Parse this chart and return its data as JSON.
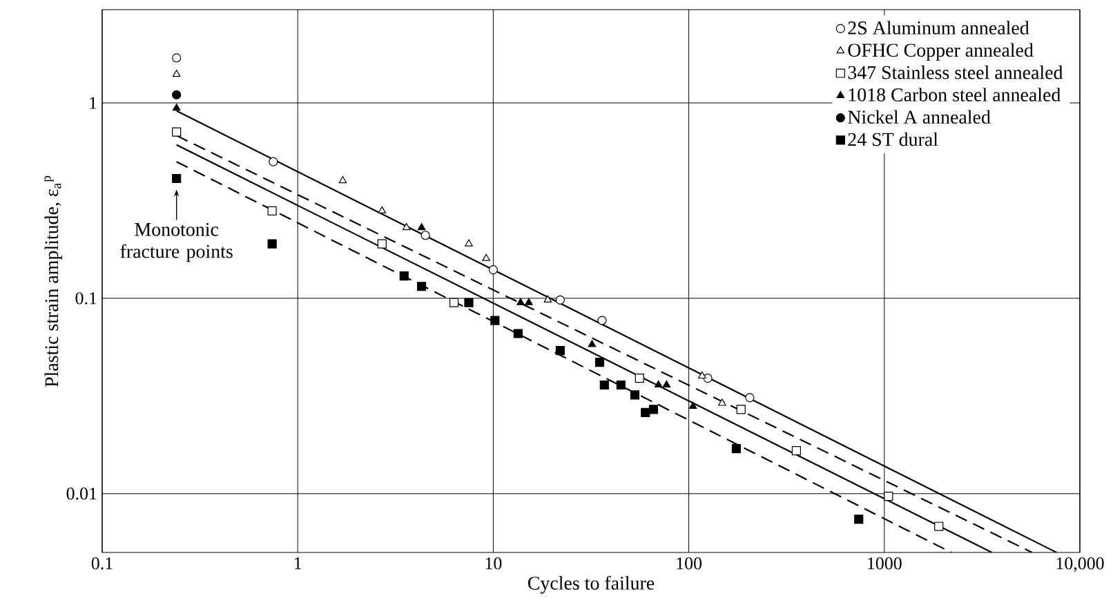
{
  "chart_data": {
    "type": "scatter",
    "xlabel": "Cycles to failure",
    "ylabel": "Plastic strain amplitude, ε$_{a}$$^{p}$",
    "log": "xy",
    "grid": true,
    "legend": "top right",
    "xlim": [
      0.1,
      10000
    ],
    "ylim": [
      0.005,
      3
    ],
    "xticks": [
      0.1,
      1,
      10,
      100,
      1000,
      {
        "value": 10000,
        "label": "10,000"
      }
    ],
    "yticks": [
      0.01,
      0.1,
      1
    ],
    "annotations": [
      {
        "text": "Monotonic fracture points",
        "x": 0.24,
        "y": 0.41
      }
    ],
    "series": [
      {
        "name": "2S Aluminum annealed",
        "marker": "circle",
        "color": "#ffffff",
        "x": [
          0.24,
          0.75,
          4.5,
          10,
          22,
          36,
          125,
          205
        ],
        "values": [
          1.7,
          0.5,
          0.21,
          0.14,
          0.098,
          0.077,
          0.039,
          0.031
        ]
      },
      {
        "name": "OFHC Copper annealed",
        "marker": "triangle",
        "color": "#ffffff",
        "x": [
          0.24,
          1.7,
          2.7,
          3.6,
          7.5,
          9.2,
          19,
          117,
          148
        ],
        "values": [
          1.4,
          0.4,
          0.28,
          0.23,
          0.19,
          0.16,
          0.098,
          0.04,
          0.029
        ]
      },
      {
        "name": "347 Stainless steel annealed",
        "marker": "square",
        "color": "#ffffff",
        "x": [
          0.24,
          0.74,
          2.7,
          6.3,
          56,
          185,
          355,
          1050,
          1900
        ],
        "values": [
          0.71,
          0.28,
          0.19,
          0.095,
          0.039,
          0.027,
          0.0166,
          0.0097,
          0.0068
        ]
      },
      {
        "name": "1018 Carbon steel annealed",
        "marker": "triangle",
        "color": "#000000",
        "x": [
          0.24,
          4.3,
          13.8,
          15.2,
          32,
          70,
          77,
          105
        ],
        "values": [
          0.94,
          0.23,
          0.095,
          0.095,
          0.058,
          0.036,
          0.036,
          0.028
        ]
      },
      {
        "name": "Nickel A annealed",
        "marker": "circle",
        "color": "#000000",
        "x": [
          0.24
        ],
        "values": [
          1.1
        ]
      },
      {
        "name": "24 ST dural",
        "marker": "square",
        "color": "#000000",
        "x": [
          0.24,
          0.74,
          3.5,
          4.3,
          7.5,
          10.2,
          13.4,
          22,
          35,
          37,
          45,
          53,
          60,
          66,
          175,
          740
        ],
        "values": [
          0.41,
          0.19,
          0.13,
          0.115,
          0.095,
          0.077,
          0.066,
          0.054,
          0.047,
          0.036,
          0.036,
          0.032,
          0.026,
          0.027,
          0.017,
          0.0074
        ]
      },
      {
        "type": "line",
        "line_style": "solid",
        "marker": "none",
        "color": "#000000",
        "x": [
          0.24,
          7600
        ],
        "values": [
          0.91,
          0.005
        ]
      },
      {
        "type": "line",
        "line_style": "dashed",
        "marker": "none",
        "color": "#000000",
        "x": [
          0.24,
          5700
        ],
        "values": [
          0.68,
          0.005
        ]
      },
      {
        "type": "line",
        "line_style": "solid",
        "marker": "none",
        "color": "#000000",
        "x": [
          0.24,
          3550
        ],
        "values": [
          0.61,
          0.005
        ]
      },
      {
        "type": "line",
        "line_style": "dashed",
        "marker": "none",
        "color": "#000000",
        "x": [
          0.24,
          2200
        ],
        "values": [
          0.5,
          0.005
        ]
      }
    ]
  }
}
